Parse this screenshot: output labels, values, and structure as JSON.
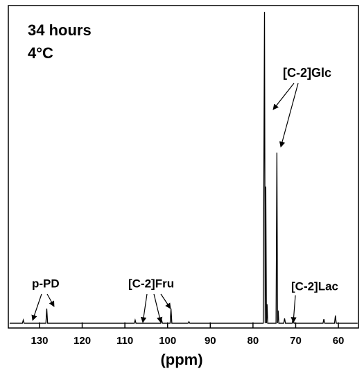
{
  "chart_data": {
    "type": "line",
    "annotations": [
      "34 hours",
      "4°C",
      "[C-2]Glc",
      "p-PD",
      "[C-2]Fru",
      "[C-2]Lac"
    ],
    "xlabel": "(ppm)",
    "x": [
      137,
      134.0,
      133.8,
      133.6,
      128.5,
      128.3,
      128.1,
      107.8,
      107.6,
      107.4,
      101.6,
      101.4,
      101.2,
      99.4,
      99.2,
      99.0,
      95.2,
      95.0,
      94.8,
      77.6,
      77.3,
      77.15,
      77.0,
      76.85,
      76.7,
      76.55,
      74.6,
      74.4,
      74.25,
      74.1,
      73.95,
      72.8,
      72.6,
      72.4,
      70.8,
      70.6,
      70.4,
      63.6,
      63.4,
      63.2,
      60.9,
      60.7,
      60.5,
      55.5
    ],
    "series": [
      {
        "color": "#000000",
        "values": [
          0,
          0,
          1,
          0,
          0,
          4.6,
          0,
          0,
          1,
          0,
          0,
          1,
          0,
          0,
          4.6,
          0,
          0,
          0.5,
          0,
          0,
          98,
          0,
          43,
          0,
          6,
          0,
          0,
          53.7,
          0,
          4,
          0,
          0,
          1.5,
          0,
          0,
          2,
          0,
          0,
          1.3,
          0,
          0,
          2.4,
          0,
          0
        ]
      }
    ],
    "xlim": [
      137.3,
      55.3
    ],
    "ylim": [
      -1.5,
      100
    ],
    "xticks": [
      130,
      120,
      110,
      100,
      90,
      80,
      70,
      60
    ]
  }
}
